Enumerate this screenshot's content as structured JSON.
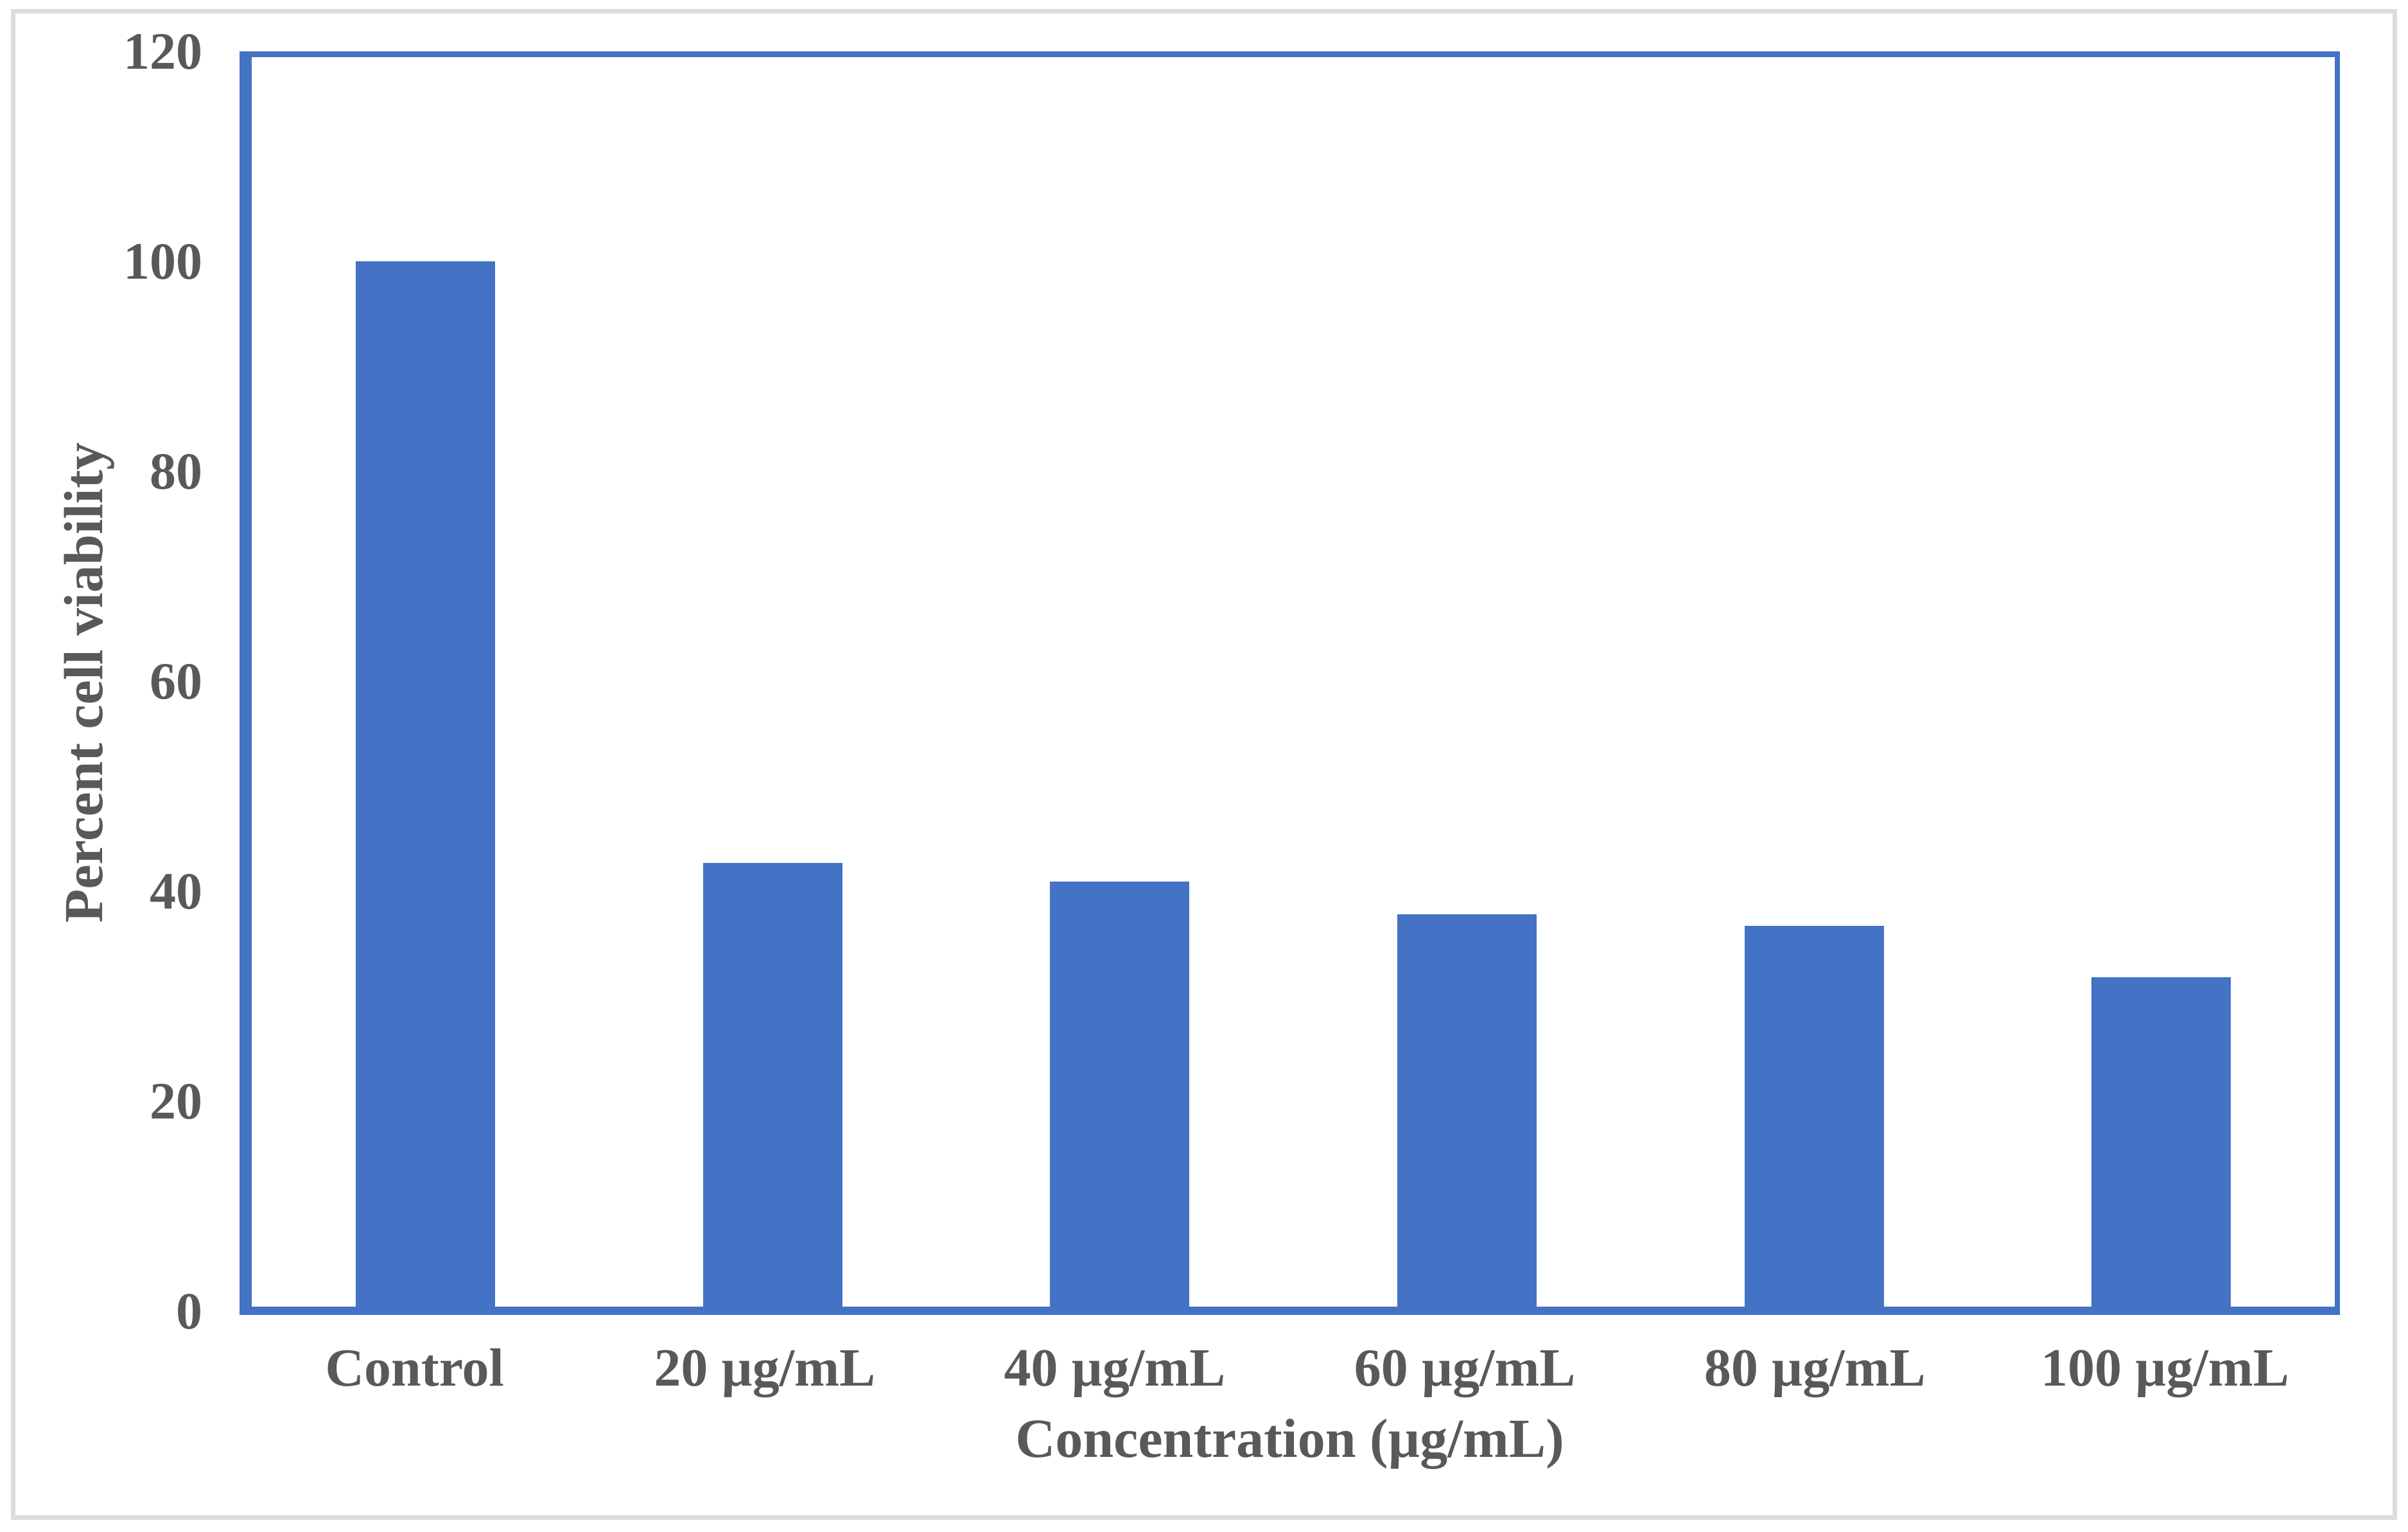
{
  "chart_data": {
    "type": "bar",
    "categories": [
      "Control",
      "20 µg/mL",
      "40 µg/mL",
      "60 µg/mL",
      "80 µg/mL",
      "100 µg/mL"
    ],
    "values": [
      100,
      42.7,
      40.9,
      37.8,
      36.7,
      31.8
    ],
    "title": "",
    "xlabel": "Concentration (µg/mL)",
    "ylabel": "Percent cell viability",
    "ylim": [
      0,
      120
    ],
    "yticks": [
      0,
      20,
      40,
      60,
      80,
      100,
      120
    ],
    "grid": false,
    "legend_position": "none",
    "bar_color": "#4472C4",
    "axis_line_color": "#4472C4",
    "text_color": "#595959",
    "figure_border_color": "#dcdcdc"
  }
}
